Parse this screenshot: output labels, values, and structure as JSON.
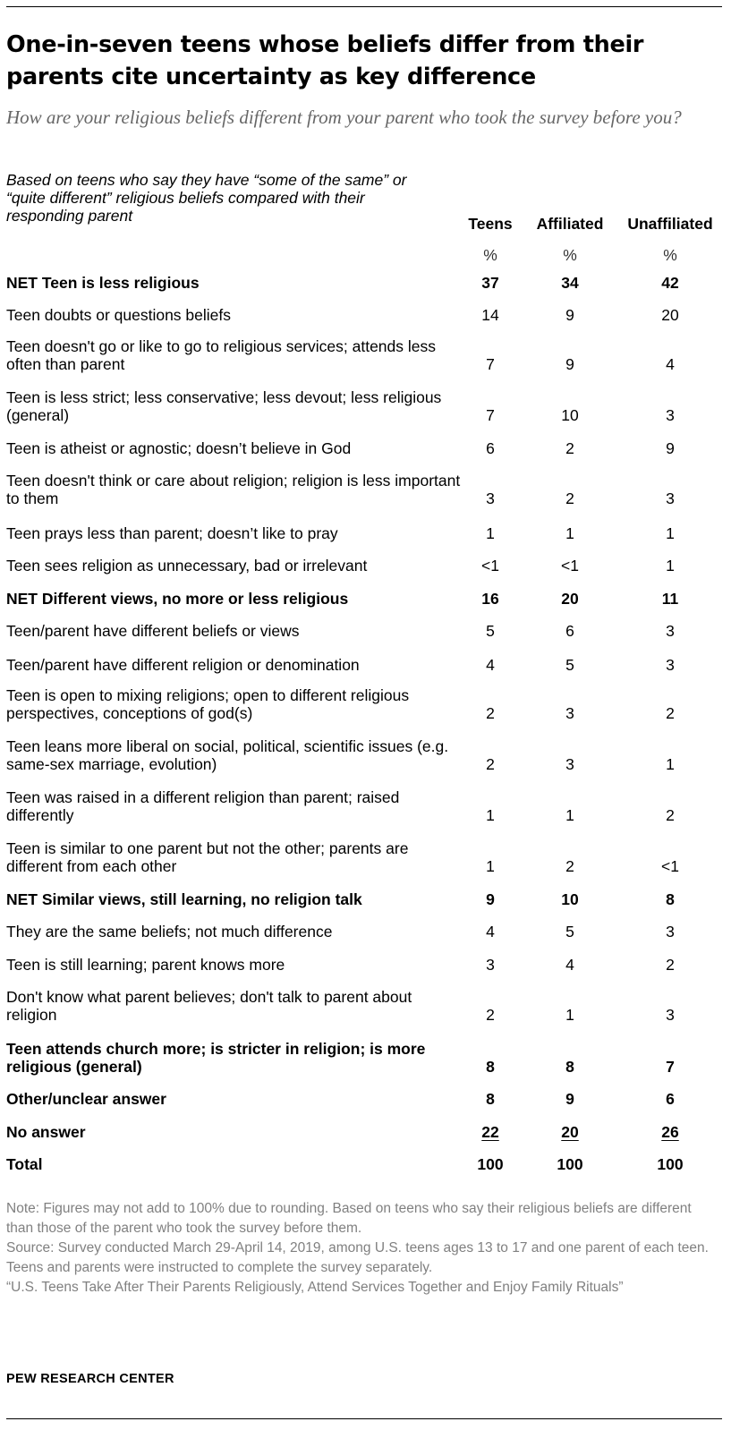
{
  "title": "One-in-seven teens whose beliefs differ from their parents cite uncertainty as key difference",
  "subtitle": "How are your religious beliefs different from your parent who took the survey before you?",
  "base_note": "Based on teens who say they have “some of the same” or “quite different” religious beliefs compared with their responding parent",
  "columns": [
    {
      "label": "Teens",
      "unit": "%"
    },
    {
      "label": "Affiliated",
      "unit": "%"
    },
    {
      "label": "Unaffiliated",
      "unit": "%"
    }
  ],
  "chart_data": {
    "type": "table",
    "title": "One-in-seven teens whose beliefs differ from their parents cite uncertainty as key difference",
    "columns": [
      "Teens",
      "Affiliated",
      "Unaffiliated"
    ],
    "rows": [
      {
        "label": "NET Teen is less religious",
        "values": [
          "37",
          "34",
          "42"
        ],
        "bold": true
      },
      {
        "label": "Teen doubts or questions beliefs",
        "values": [
          "14",
          "9",
          "20"
        ]
      },
      {
        "label": "Teen doesn't go or like to go to religious services; attends less often than parent",
        "values": [
          "7",
          "9",
          "4"
        ]
      },
      {
        "label": "Teen is less strict; less conservative; less devout; less religious (general)",
        "values": [
          "7",
          "10",
          "3"
        ]
      },
      {
        "label": "Teen is atheist or agnostic; doesn’t believe in God",
        "values": [
          "6",
          "2",
          "9"
        ]
      },
      {
        "label": "Teen doesn't think or care about religion; religion is less important to them",
        "values": [
          "3",
          "2",
          "3"
        ]
      },
      {
        "label": "Teen prays less than parent; doesn’t like to pray",
        "values": [
          "1",
          "1",
          "1"
        ]
      },
      {
        "label": "Teen sees religion as unnecessary, bad or irrelevant",
        "values": [
          "<1",
          "<1",
          "1"
        ]
      },
      {
        "label": "NET Different views, no more or less religious",
        "values": [
          "16",
          "20",
          "11"
        ],
        "bold": true
      },
      {
        "label": "Teen/parent have different beliefs or views",
        "values": [
          "5",
          "6",
          "3"
        ]
      },
      {
        "label": "Teen/parent have different religion or denomination",
        "values": [
          "4",
          "5",
          "3"
        ]
      },
      {
        "label": "Teen is open to mixing religions; open to different religious perspectives, conceptions of god(s)",
        "values": [
          "2",
          "3",
          "2"
        ]
      },
      {
        "label": "Teen leans more liberal on social, political, scientific issues (e.g. same-sex marriage, evolution)",
        "values": [
          "2",
          "3",
          "1"
        ]
      },
      {
        "label": "Teen was raised in a different religion than parent; raised differently",
        "values": [
          "1",
          "1",
          "2"
        ]
      },
      {
        "label": "Teen is similar to one parent but not the other; parents are different from each other",
        "values": [
          "1",
          "2",
          "<1"
        ]
      },
      {
        "label": "NET Similar views, still learning, no religion talk",
        "values": [
          "9",
          "10",
          "8"
        ],
        "bold": true
      },
      {
        "label": "They are the same beliefs; not much difference",
        "values": [
          "4",
          "5",
          "3"
        ]
      },
      {
        "label": "Teen is still learning; parent knows more",
        "values": [
          "3",
          "4",
          "2"
        ]
      },
      {
        "label": "Don't know what parent believes; don't talk to parent about religion",
        "values": [
          "2",
          "1",
          "3"
        ]
      },
      {
        "label": "Teen attends church more; is stricter in religion; is more religious (general)",
        "values": [
          "8",
          "8",
          "7"
        ],
        "bold": true
      },
      {
        "label": "Other/unclear answer",
        "values": [
          "8",
          "9",
          "6"
        ],
        "bold": true
      },
      {
        "label": "No answer",
        "values": [
          "22",
          "20",
          "26"
        ],
        "bold": true,
        "underline": true
      },
      {
        "label": "Total",
        "values": [
          "100",
          "100",
          "100"
        ],
        "bold": true
      }
    ]
  },
  "note": "Note: Figures may not add to 100% due to rounding. Based on teens who say their religious beliefs are different than those of the parent who took the survey before them.",
  "source": "Source: Survey conducted March 29-April 14, 2019, among U.S. teens ages 13 to 17 and one parent of each teen. Teens and parents were instructed to complete the survey separately.",
  "report": "“U.S. Teens Take After Their Parents Religiously, Attend Services Together and Enjoy Family Rituals”",
  "brand": "PEW RESEARCH CENTER"
}
